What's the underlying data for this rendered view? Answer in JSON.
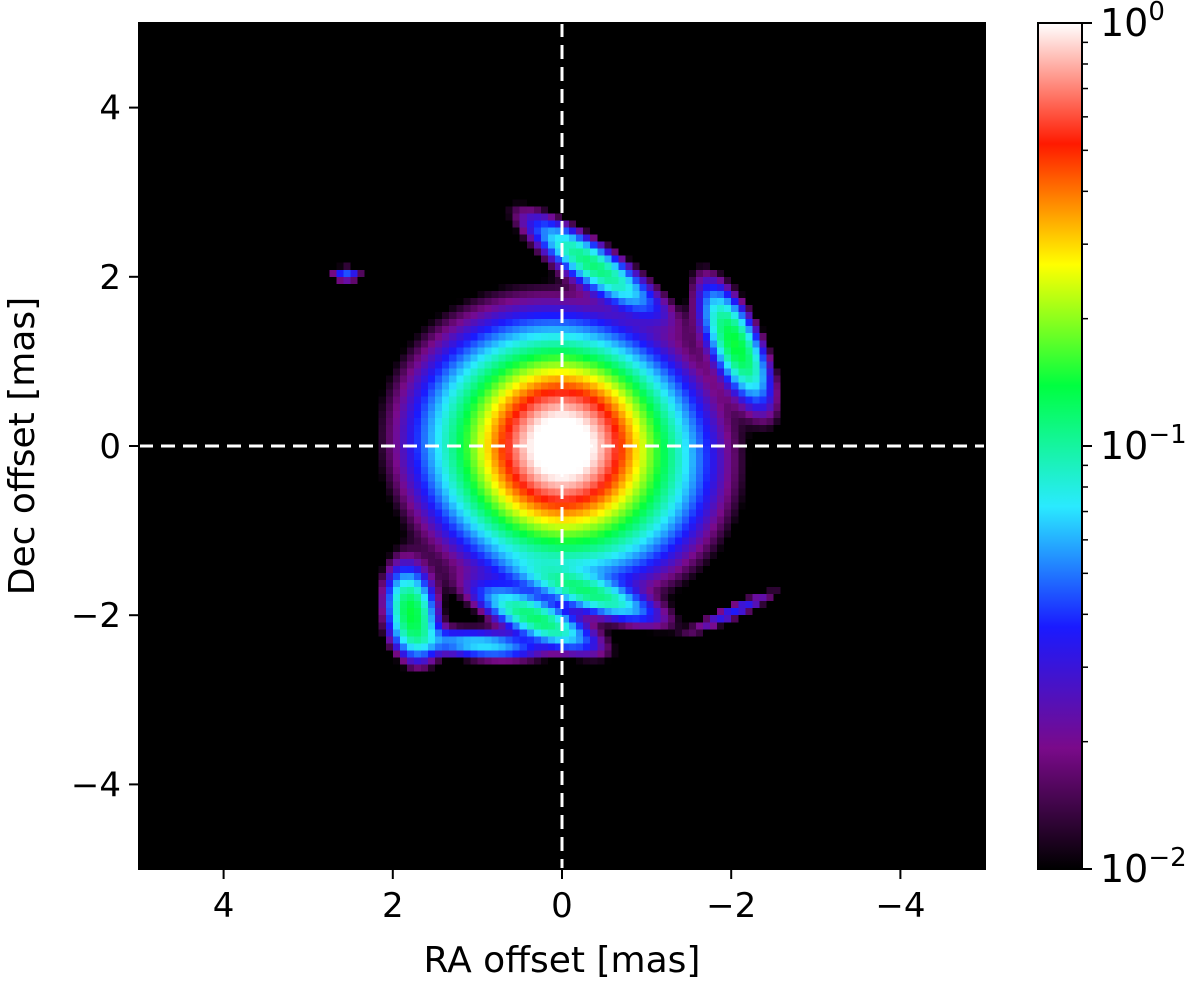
{
  "chart_data": {
    "type": "heatmap",
    "title": "",
    "xlabel": "RA offset [mas]",
    "ylabel": "Dec offset [mas]",
    "xlim": [
      5,
      -5
    ],
    "ylim": [
      -5,
      5
    ],
    "x_inverted": true,
    "xticks": [
      4,
      2,
      0,
      -2,
      -4
    ],
    "yticks": [
      -4,
      -2,
      0,
      2,
      4
    ],
    "xtick_labels": [
      "4",
      "2",
      "0",
      "−2",
      "−4"
    ],
    "ytick_labels": [
      "−4",
      "−2",
      "0",
      "2",
      "4"
    ],
    "grid": false,
    "background_color": "#000000",
    "crosshair": {
      "x": 0,
      "y": 0,
      "color": "#ffffff",
      "style": "dashed"
    },
    "colorbar": {
      "scale": "log",
      "min": 0.01,
      "max": 1,
      "placement": "right",
      "tick_values": [
        1,
        0.1,
        0.01
      ],
      "tick_labels": [
        {
          "base": "10",
          "exp": "0"
        },
        {
          "base": "10",
          "exp": "−1"
        },
        {
          "base": "10",
          "exp": "−2"
        }
      ],
      "colormap": [
        "#000000",
        "#7a0a8a",
        "#1a1aff",
        "#2aeaff",
        "#00ff40",
        "#ffff00",
        "#ff1a00",
        "#ffffff"
      ]
    },
    "features": [
      {
        "name": "core",
        "ra": 0.0,
        "dec": 0.0,
        "peak": 1.0,
        "sigma_major": 0.42,
        "sigma_minor": 0.42,
        "angle_deg": 0
      },
      {
        "name": "core-halo",
        "ra": 0.0,
        "dec": -0.05,
        "peak": 0.32,
        "sigma_major": 0.85,
        "sigma_minor": 0.75,
        "angle_deg": 20
      },
      {
        "name": "north-arc",
        "ra": -0.35,
        "dec": 2.15,
        "peak": 0.11,
        "sigma_major": 0.55,
        "sigma_minor": 0.14,
        "angle_deg": 35
      },
      {
        "name": "northeast-knot",
        "ra": 2.55,
        "dec": 2.03,
        "peak": 0.045,
        "sigma_major": 0.12,
        "sigma_minor": 0.06,
        "angle_deg": 0
      },
      {
        "name": "west-blob",
        "ra": -2.05,
        "dec": 1.2,
        "peak": 0.14,
        "sigma_major": 0.45,
        "sigma_minor": 0.16,
        "angle_deg": 65
      },
      {
        "name": "south-arc-1",
        "ra": -0.35,
        "dec": -1.75,
        "peak": 0.09,
        "sigma_major": 0.5,
        "sigma_minor": 0.12,
        "angle_deg": 20
      },
      {
        "name": "south-arc-2",
        "ra": 0.3,
        "dec": -2.05,
        "peak": 0.11,
        "sigma_major": 0.45,
        "sigma_minor": 0.13,
        "angle_deg": 25
      },
      {
        "name": "south-arc-3",
        "ra": 0.95,
        "dec": -2.35,
        "peak": 0.07,
        "sigma_major": 0.45,
        "sigma_minor": 0.11,
        "angle_deg": 5
      },
      {
        "name": "southeast-blob",
        "ra": 1.78,
        "dec": -1.98,
        "peak": 0.14,
        "sigma_major": 0.32,
        "sigma_minor": 0.17,
        "angle_deg": 80
      },
      {
        "name": "southwest-streak",
        "ra": -2.05,
        "dec": -1.95,
        "peak": 0.035,
        "sigma_major": 0.38,
        "sigma_minor": 0.06,
        "angle_deg": -25
      }
    ]
  }
}
